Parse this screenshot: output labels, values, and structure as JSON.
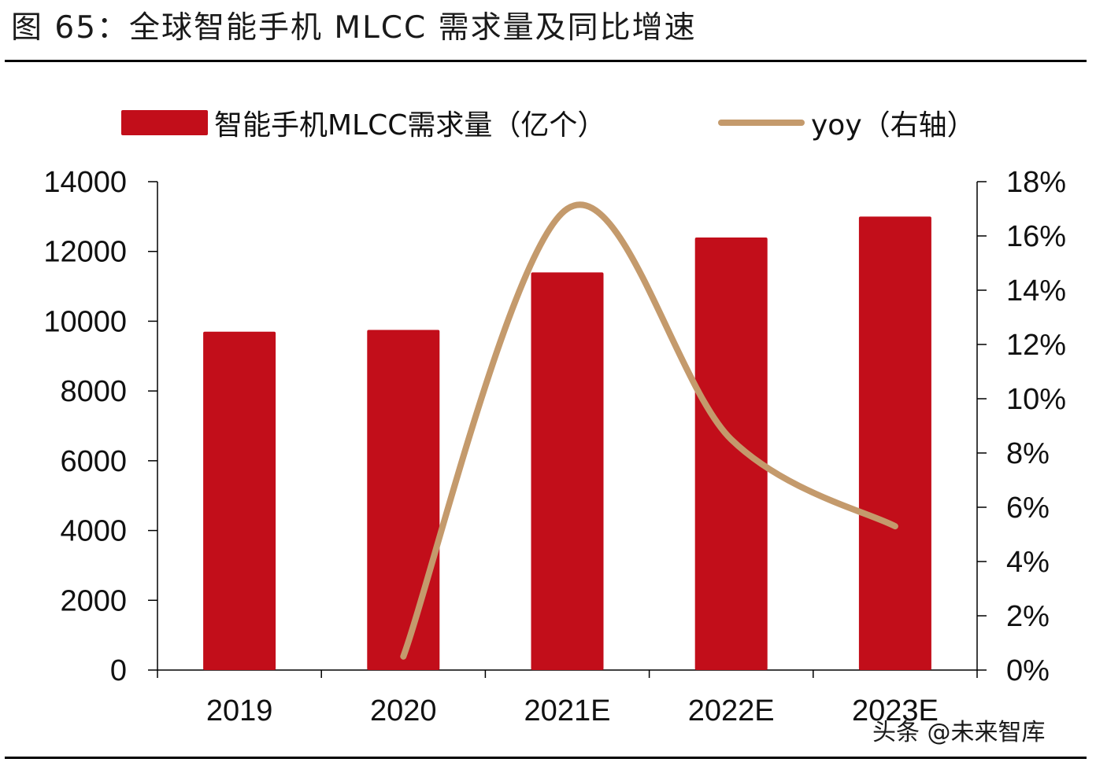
{
  "header": {
    "title": "图 65：全球智能手机 MLCC 需求量及同比增速"
  },
  "watermark": "头条 @未来智库",
  "colors": {
    "bar": "#C20E1A",
    "line": "#C49A6C"
  },
  "chart_data": {
    "type": "bar",
    "title": "全球智能手机 MLCC 需求量及同比增速",
    "categories": [
      "2019",
      "2020",
      "2021E",
      "2022E",
      "2023E"
    ],
    "series": [
      {
        "name": "智能手机MLCC需求量（亿个）",
        "type": "bar",
        "axis": "left",
        "values": [
          9700,
          9750,
          11400,
          12400,
          13000
        ]
      },
      {
        "name": "yoy（右轴）",
        "type": "line",
        "axis": "right",
        "smooth": true,
        "values": [
          null,
          0.5,
          17.0,
          8.5,
          5.3
        ]
      }
    ],
    "y_left": {
      "min": 0,
      "max": 14000,
      "step": 2000,
      "tick_labels": [
        "0",
        "2000",
        "4000",
        "6000",
        "8000",
        "10000",
        "12000",
        "14000"
      ]
    },
    "y_right": {
      "min": 0,
      "max": 18,
      "step": 2,
      "tick_labels": [
        "0%",
        "2%",
        "4%",
        "6%",
        "8%",
        "10%",
        "12%",
        "14%",
        "16%",
        "18%"
      ]
    },
    "legend_position": "top",
    "grid": false
  }
}
